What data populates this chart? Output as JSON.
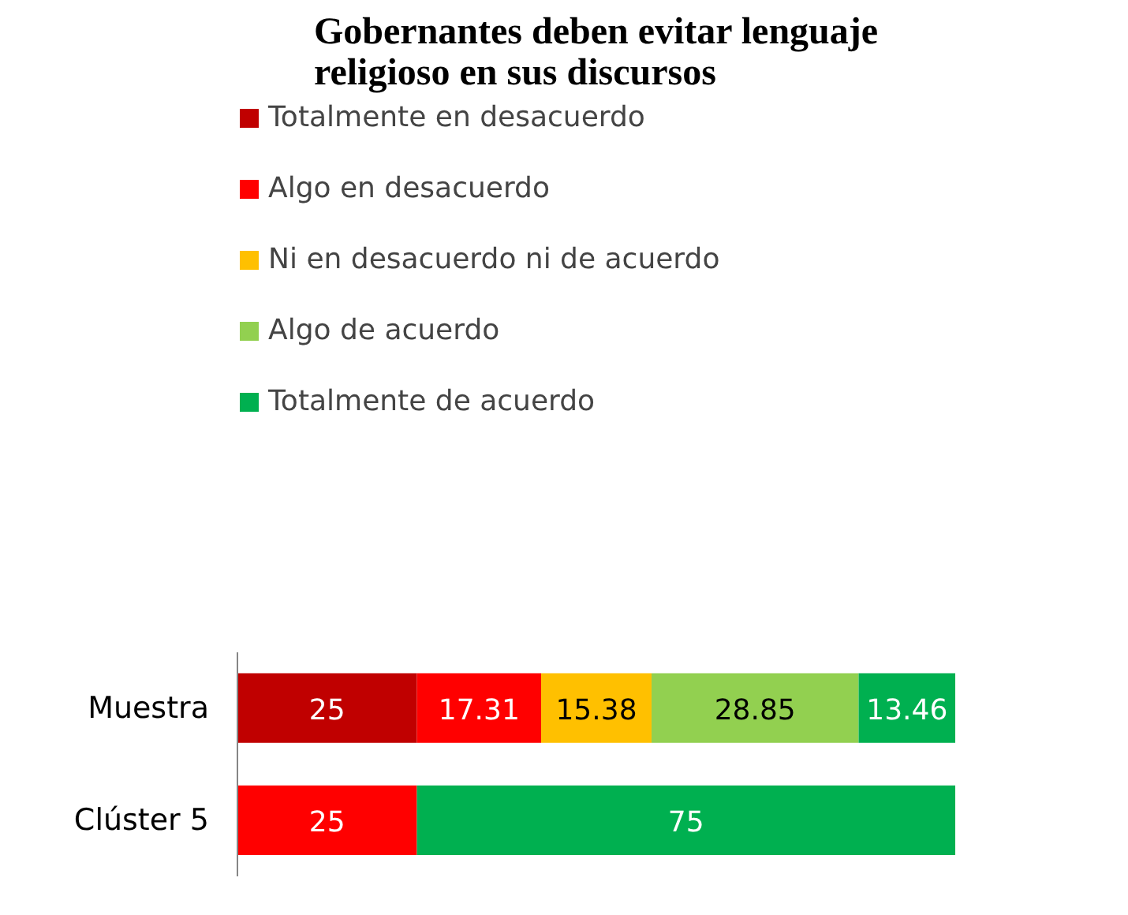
{
  "chart_data": {
    "type": "bar",
    "orientation": "horizontal",
    "stacked": true,
    "title": "Gobernantes deben evitar lenguaje\nreligioso en sus discursos",
    "categories": [
      "Muestra",
      "Clúster 5"
    ],
    "series": [
      {
        "name": "Totalmente en desacuerdo",
        "color": "#c00000",
        "values": [
          25,
          null
        ]
      },
      {
        "name": "Algo en desacuerdo",
        "color": "#ff0000",
        "values": [
          17.31,
          25
        ]
      },
      {
        "name": "Ni en desacuerdo ni de acuerdo",
        "color": "#ffc000",
        "values": [
          15.38,
          null
        ]
      },
      {
        "name": "Algo de acuerdo",
        "color": "#92d050",
        "values": [
          28.85,
          null
        ]
      },
      {
        "name": "Totalmente de acuerdo",
        "color": "#00b050",
        "values": [
          13.46,
          75
        ]
      }
    ],
    "xlim": [
      0,
      100
    ],
    "tick_labels": "y",
    "data_labels": true,
    "legend": "top",
    "grid": false
  }
}
